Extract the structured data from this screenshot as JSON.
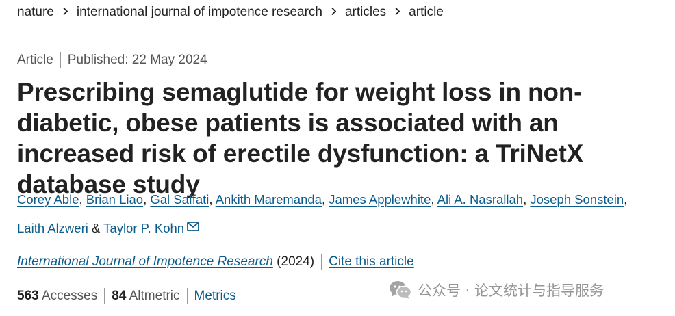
{
  "breadcrumb": {
    "items": [
      "nature",
      "international journal of impotence research",
      "articles"
    ],
    "current": "article"
  },
  "meta": {
    "type": "Article",
    "published": "Published: 22 May 2024"
  },
  "title": "Prescribing semaglutide for weight loss in non-diabetic, obese patients is associated with an increased risk of erectile dysfunction: a TriNetX database study",
  "authors": [
    "Corey Able",
    "Brian Liao",
    "Gal Saffati",
    "Ankith Maremanda",
    "James Applewhite",
    "Ali A. Nasrallah",
    "Joseph Sonstein",
    "Laith Alzweri",
    "Taylor P. Kohn"
  ],
  "author_separator": ",",
  "author_last_join": "&",
  "journal": {
    "name": "International Journal of Impotence Research",
    "year": "(2024)",
    "cite_label": "Cite this article"
  },
  "metrics": {
    "accesses_count": "563",
    "accesses_label": "Accesses",
    "altmetric_count": "84",
    "altmetric_label": "Altmetric",
    "metrics_link": "Metrics"
  },
  "watermark": {
    "text": "公众号 · 论文统计与指导服务",
    "icon": "wechat-icon"
  },
  "icons": {
    "corresponding_author": "envelope-icon"
  },
  "colors": {
    "link": "#0c5d8c",
    "text": "#222222",
    "muted": "#555555"
  }
}
